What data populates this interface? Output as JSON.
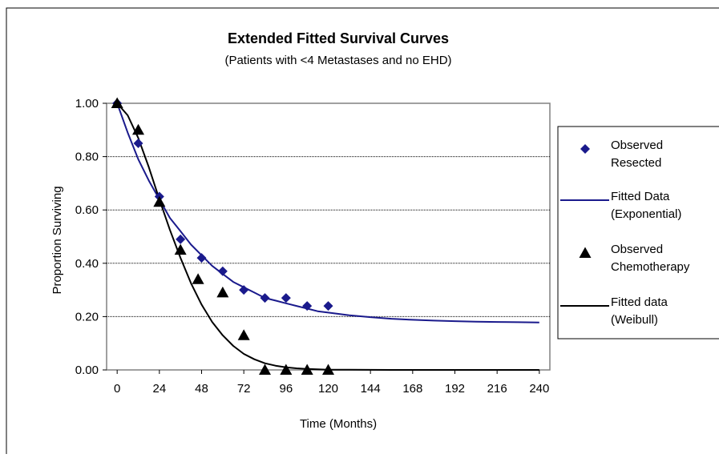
{
  "chart_data": {
    "type": "scatter",
    "title": "Extended Fitted Survival Curves",
    "subtitle": "(Patients with <4 Metastases and no EHD)",
    "xlabel": "Time (Months)",
    "ylabel": "Proportion Surviving",
    "xlim": [
      -6,
      246
    ],
    "ylim": [
      0,
      1
    ],
    "x_ticks": [
      "0",
      "24",
      "48",
      "72",
      "96",
      "120",
      "144",
      "168",
      "192",
      "216",
      "240"
    ],
    "y_ticks": [
      "0.00",
      "0.20",
      "0.40",
      "0.60",
      "0.80",
      "1.00"
    ],
    "x_tick_values": [
      0,
      24,
      48,
      72,
      96,
      120,
      144,
      168,
      192,
      216,
      240
    ],
    "y_tick_values": [
      0,
      0.2,
      0.4,
      0.6,
      0.8,
      1.0
    ],
    "grid": "horizontal",
    "legend_position": "right",
    "series": [
      {
        "name": "Observed Resected",
        "kind": "points",
        "marker": "diamond",
        "color": "#1a1a8c",
        "x": [
          0,
          12,
          24,
          36,
          48,
          60,
          72,
          84,
          96,
          108,
          120
        ],
        "y": [
          1.0,
          0.85,
          0.65,
          0.49,
          0.42,
          0.37,
          0.3,
          0.27,
          0.27,
          0.24,
          0.24
        ]
      },
      {
        "name": "Fitted Data (Exponential)",
        "kind": "line",
        "color": "#1a1a8c",
        "x": [
          0,
          6,
          12,
          18,
          24,
          30,
          36,
          42,
          48,
          54,
          60,
          66,
          72,
          78,
          84,
          90,
          96,
          102,
          108,
          114,
          120,
          132,
          144,
          156,
          168,
          180,
          192,
          204,
          216,
          228,
          240
        ],
        "y": [
          1.0,
          0.89,
          0.79,
          0.71,
          0.64,
          0.57,
          0.52,
          0.47,
          0.43,
          0.39,
          0.36,
          0.33,
          0.31,
          0.29,
          0.27,
          0.26,
          0.25,
          0.24,
          0.23,
          0.22,
          0.215,
          0.205,
          0.198,
          0.192,
          0.188,
          0.185,
          0.183,
          0.181,
          0.18,
          0.179,
          0.178
        ]
      },
      {
        "name": "Observed Chemotherapy",
        "kind": "points",
        "marker": "triangle",
        "color": "#000000",
        "x": [
          0,
          12,
          24,
          36,
          46,
          60,
          72,
          84,
          96,
          108,
          120
        ],
        "y": [
          1.0,
          0.9,
          0.63,
          0.45,
          0.34,
          0.29,
          0.13,
          0.0,
          0.0,
          0.0,
          0.0
        ]
      },
      {
        "name": "Fitted data (Weibull)",
        "kind": "line",
        "color": "#000000",
        "x": [
          0,
          6,
          12,
          18,
          24,
          30,
          36,
          42,
          48,
          54,
          60,
          66,
          72,
          78,
          84,
          90,
          96,
          102,
          108,
          114,
          120,
          132,
          144,
          156,
          168,
          180,
          192,
          204,
          216,
          228,
          240
        ],
        "y": [
          1.0,
          0.955,
          0.87,
          0.76,
          0.64,
          0.525,
          0.42,
          0.325,
          0.245,
          0.18,
          0.13,
          0.09,
          0.06,
          0.04,
          0.025,
          0.016,
          0.01,
          0.006,
          0.0035,
          0.002,
          0.001,
          0.0005,
          0.0002,
          0.0001,
          0.0,
          0.0,
          0.0,
          0.0,
          0.0,
          0.0,
          0.0
        ]
      }
    ],
    "legend": [
      {
        "marker": "diamond",
        "color": "#1a1a8c",
        "lines": [
          "Observed",
          "Resected"
        ]
      },
      {
        "marker": "line",
        "color": "#1a1a8c",
        "lines": [
          "Fitted Data",
          "(Exponential)"
        ]
      },
      {
        "marker": "triangle",
        "color": "#000000",
        "lines": [
          "Observed",
          "Chemotherapy"
        ]
      },
      {
        "marker": "line",
        "color": "#000000",
        "lines": [
          "Fitted data",
          "(Weibull)"
        ]
      }
    ]
  }
}
